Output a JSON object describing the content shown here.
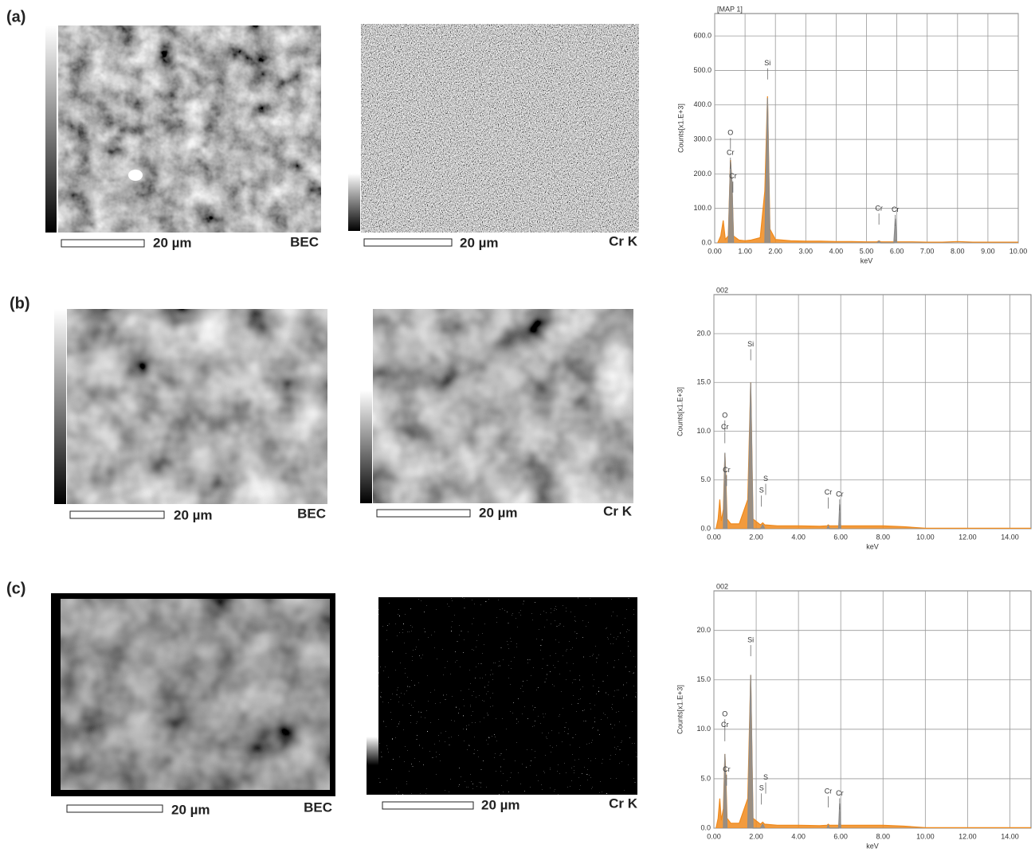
{
  "panels": [
    {
      "label": "(a)",
      "images": [
        {
          "scale": "20 µm",
          "signal": "BEC"
        },
        {
          "scale": "20 µm",
          "signal": "Cr K"
        }
      ]
    },
    {
      "label": "(b)",
      "images": [
        {
          "scale": "20 µm",
          "signal": "BEC"
        },
        {
          "scale": "20 µm",
          "signal": "Cr K"
        }
      ]
    },
    {
      "label": "(c)",
      "images": [
        {
          "scale": "20 µm",
          "signal": "BEC"
        },
        {
          "scale": "20 µm",
          "signal": "Cr K"
        }
      ]
    }
  ],
  "chart_data": [
    {
      "type": "area",
      "title": "[MAP 1]",
      "x_label": "keV",
      "y_label": "Counts[x1.E+3]",
      "grid": true,
      "xlim": [
        0,
        10
      ],
      "ylim": [
        0,
        665
      ],
      "xticks": [
        {
          "value": 0,
          "label": "0.00"
        },
        {
          "value": 1,
          "label": "1.00"
        },
        {
          "value": 2,
          "label": "2.00"
        },
        {
          "value": 3,
          "label": "3.00"
        },
        {
          "value": 4,
          "label": "4.00"
        },
        {
          "value": 5,
          "label": "5.00"
        },
        {
          "value": 6,
          "label": "6.00"
        },
        {
          "value": 7,
          "label": "7.00"
        },
        {
          "value": 8,
          "label": "8.00"
        },
        {
          "value": 9,
          "label": "9.00"
        },
        {
          "value": 10,
          "label": "10.00"
        }
      ],
      "yticks": [
        {
          "value": 0,
          "label": "0.0"
        },
        {
          "value": 100,
          "label": "100.0"
        },
        {
          "value": 200,
          "label": "200.0"
        },
        {
          "value": 300,
          "label": "300.0"
        },
        {
          "value": 400,
          "label": "400.0"
        },
        {
          "value": 500,
          "label": "500.0"
        },
        {
          "value": 600,
          "label": "600.0"
        }
      ],
      "x": [
        0.1,
        0.2,
        0.28,
        0.35,
        0.45,
        0.52,
        0.57,
        0.62,
        0.8,
        1.0,
        1.2,
        1.5,
        1.65,
        1.74,
        1.82,
        2.0,
        2.5,
        3.0,
        3.5,
        4.0,
        4.5,
        5.0,
        5.35,
        5.41,
        5.47,
        5.9,
        5.95,
        6.0,
        6.5,
        7.0,
        7.5,
        8.0,
        8.5,
        9.0,
        9.5,
        10.0
      ],
      "series": [
        {
          "color": "#f08a1c",
          "values": [
            0,
            20,
            65,
            10,
            20,
            240,
            170,
            20,
            8,
            6,
            8,
            15,
            150,
            425,
            40,
            10,
            6,
            5,
            5,
            4,
            4,
            3,
            3,
            6,
            3,
            3,
            8,
            3,
            3,
            2,
            2,
            4,
            2,
            2,
            2,
            2
          ]
        },
        {
          "color": "#8c8c8c",
          "values": [
            null,
            null,
            null,
            null,
            0,
            235,
            175,
            0,
            null,
            null,
            null,
            null,
            0,
            420,
            0,
            null,
            null,
            null,
            null,
            null,
            null,
            null,
            0,
            5,
            0,
            0,
            70,
            0,
            null,
            null,
            null,
            null,
            null,
            null,
            null,
            null
          ]
        }
      ],
      "annotations": [
        {
          "text": "O",
          "x": 0.52,
          "y": 318
        },
        {
          "text": "Cr",
          "x": 0.52,
          "y": 261
        },
        {
          "text": "Cr",
          "x": 0.6,
          "y": 192
        },
        {
          "text": "Si",
          "x": 1.74,
          "y": 520
        },
        {
          "text": "Cr",
          "x": 5.41,
          "y": 99
        },
        {
          "text": "Cr",
          "x": 5.95,
          "y": 95
        }
      ]
    },
    {
      "type": "area",
      "title": "002",
      "x_label": "keV",
      "y_label": "Counts[x1.E+3]",
      "grid": true,
      "xlim": [
        0,
        15
      ],
      "ylim": [
        0,
        24
      ],
      "xticks": [
        {
          "value": 0,
          "label": "0.00"
        },
        {
          "value": 2,
          "label": "2.00"
        },
        {
          "value": 4,
          "label": "4.00"
        },
        {
          "value": 6,
          "label": "6.00"
        },
        {
          "value": 8,
          "label": "8.00"
        },
        {
          "value": 10,
          "label": "10.00"
        },
        {
          "value": 12,
          "label": "12.00"
        },
        {
          "value": 14,
          "label": "14.00"
        }
      ],
      "yticks": [
        {
          "value": 0,
          "label": "0.0"
        },
        {
          "value": 5,
          "label": "5.0"
        },
        {
          "value": 10,
          "label": "10.0"
        },
        {
          "value": 15,
          "label": "15.0"
        },
        {
          "value": 20,
          "label": "20.0"
        }
      ],
      "x": [
        0.1,
        0.2,
        0.28,
        0.35,
        0.45,
        0.52,
        0.57,
        0.62,
        0.8,
        1.2,
        1.6,
        1.74,
        1.85,
        2.2,
        2.31,
        2.4,
        3,
        4,
        5,
        5.35,
        5.41,
        5.47,
        5.9,
        5.95,
        6.0,
        7,
        8,
        9,
        10,
        12,
        15
      ],
      "series": [
        {
          "color": "#f08a1c",
          "values": [
            0,
            1,
            3,
            0.8,
            2,
            7.7,
            5,
            1,
            0.5,
            0.5,
            3,
            15,
            1,
            0.4,
            0.6,
            0.4,
            0.3,
            0.3,
            0.25,
            0.3,
            0.4,
            0.3,
            0.3,
            0.4,
            0.3,
            0.3,
            0.3,
            0.2,
            0.05,
            0.05,
            0.05
          ]
        },
        {
          "color": "#8c8c8c",
          "values": [
            null,
            null,
            null,
            null,
            0,
            7.8,
            4,
            0,
            null,
            null,
            0,
            15,
            0,
            0,
            0.4,
            0,
            null,
            null,
            null,
            0,
            0.3,
            0,
            0,
            2.5,
            0,
            null,
            null,
            null,
            null,
            null,
            null
          ]
        }
      ],
      "annotations": [
        {
          "text": "Si",
          "x": 1.74,
          "y": 18.9
        },
        {
          "text": "O",
          "x": 0.52,
          "y": 11.6
        },
        {
          "text": "Cr",
          "x": 0.52,
          "y": 10.4
        },
        {
          "text": "Cr",
          "x": 0.6,
          "y": 6.0
        },
        {
          "text": "S",
          "x": 2.45,
          "y": 5.1
        },
        {
          "text": "S",
          "x": 2.25,
          "y": 3.9
        },
        {
          "text": "Cr",
          "x": 5.41,
          "y": 3.7
        },
        {
          "text": "Cr",
          "x": 5.95,
          "y": 3.5
        }
      ]
    },
    {
      "type": "area",
      "title": "002",
      "x_label": "keV",
      "y_label": "Counts[x1.E+3]",
      "grid": true,
      "xlim": [
        0,
        15
      ],
      "ylim": [
        0,
        24
      ],
      "xticks": [
        {
          "value": 0,
          "label": "0.00"
        },
        {
          "value": 2,
          "label": "2.00"
        },
        {
          "value": 4,
          "label": "4.00"
        },
        {
          "value": 6,
          "label": "6.00"
        },
        {
          "value": 8,
          "label": "8.00"
        },
        {
          "value": 10,
          "label": "10.00"
        },
        {
          "value": 12,
          "label": "12.00"
        },
        {
          "value": 14,
          "label": "14.00"
        }
      ],
      "yticks": [
        {
          "value": 0,
          "label": "0.0"
        },
        {
          "value": 5,
          "label": "5.0"
        },
        {
          "value": 10,
          "label": "10.0"
        },
        {
          "value": 15,
          "label": "15.0"
        },
        {
          "value": 20,
          "label": "20.0"
        }
      ],
      "x": [
        0.1,
        0.2,
        0.28,
        0.35,
        0.45,
        0.52,
        0.57,
        0.62,
        0.8,
        1.2,
        1.6,
        1.74,
        1.85,
        2.2,
        2.31,
        2.4,
        3,
        4,
        5,
        5.35,
        5.41,
        5.47,
        5.9,
        5.95,
        6.0,
        7,
        8,
        9,
        10,
        12,
        15
      ],
      "series": [
        {
          "color": "#f08a1c",
          "values": [
            0,
            1,
            3,
            0.8,
            2,
            7.5,
            5,
            1,
            0.5,
            0.5,
            3,
            15.5,
            1,
            0.4,
            0.6,
            0.4,
            0.3,
            0.3,
            0.25,
            0.3,
            0.4,
            0.3,
            0.3,
            0.4,
            0.3,
            0.3,
            0.3,
            0.2,
            0.05,
            0.05,
            0.05
          ]
        },
        {
          "color": "#8c8c8c",
          "values": [
            null,
            null,
            null,
            null,
            0,
            7.5,
            4,
            0,
            null,
            null,
            0,
            15.5,
            0,
            0,
            0.4,
            0,
            null,
            null,
            null,
            0,
            0.3,
            0,
            0,
            2.5,
            0,
            null,
            null,
            null,
            null,
            null,
            null
          ]
        }
      ],
      "annotations": [
        {
          "text": "Si",
          "x": 1.74,
          "y": 19.0
        },
        {
          "text": "O",
          "x": 0.52,
          "y": 11.5
        },
        {
          "text": "Cr",
          "x": 0.52,
          "y": 10.4
        },
        {
          "text": "Cr",
          "x": 0.6,
          "y": 5.9
        },
        {
          "text": "S",
          "x": 2.45,
          "y": 5.1
        },
        {
          "text": "S",
          "x": 2.25,
          "y": 4.0
        },
        {
          "text": "Cr",
          "x": 5.41,
          "y": 3.7
        },
        {
          "text": "Cr",
          "x": 5.95,
          "y": 3.5
        }
      ]
    }
  ]
}
